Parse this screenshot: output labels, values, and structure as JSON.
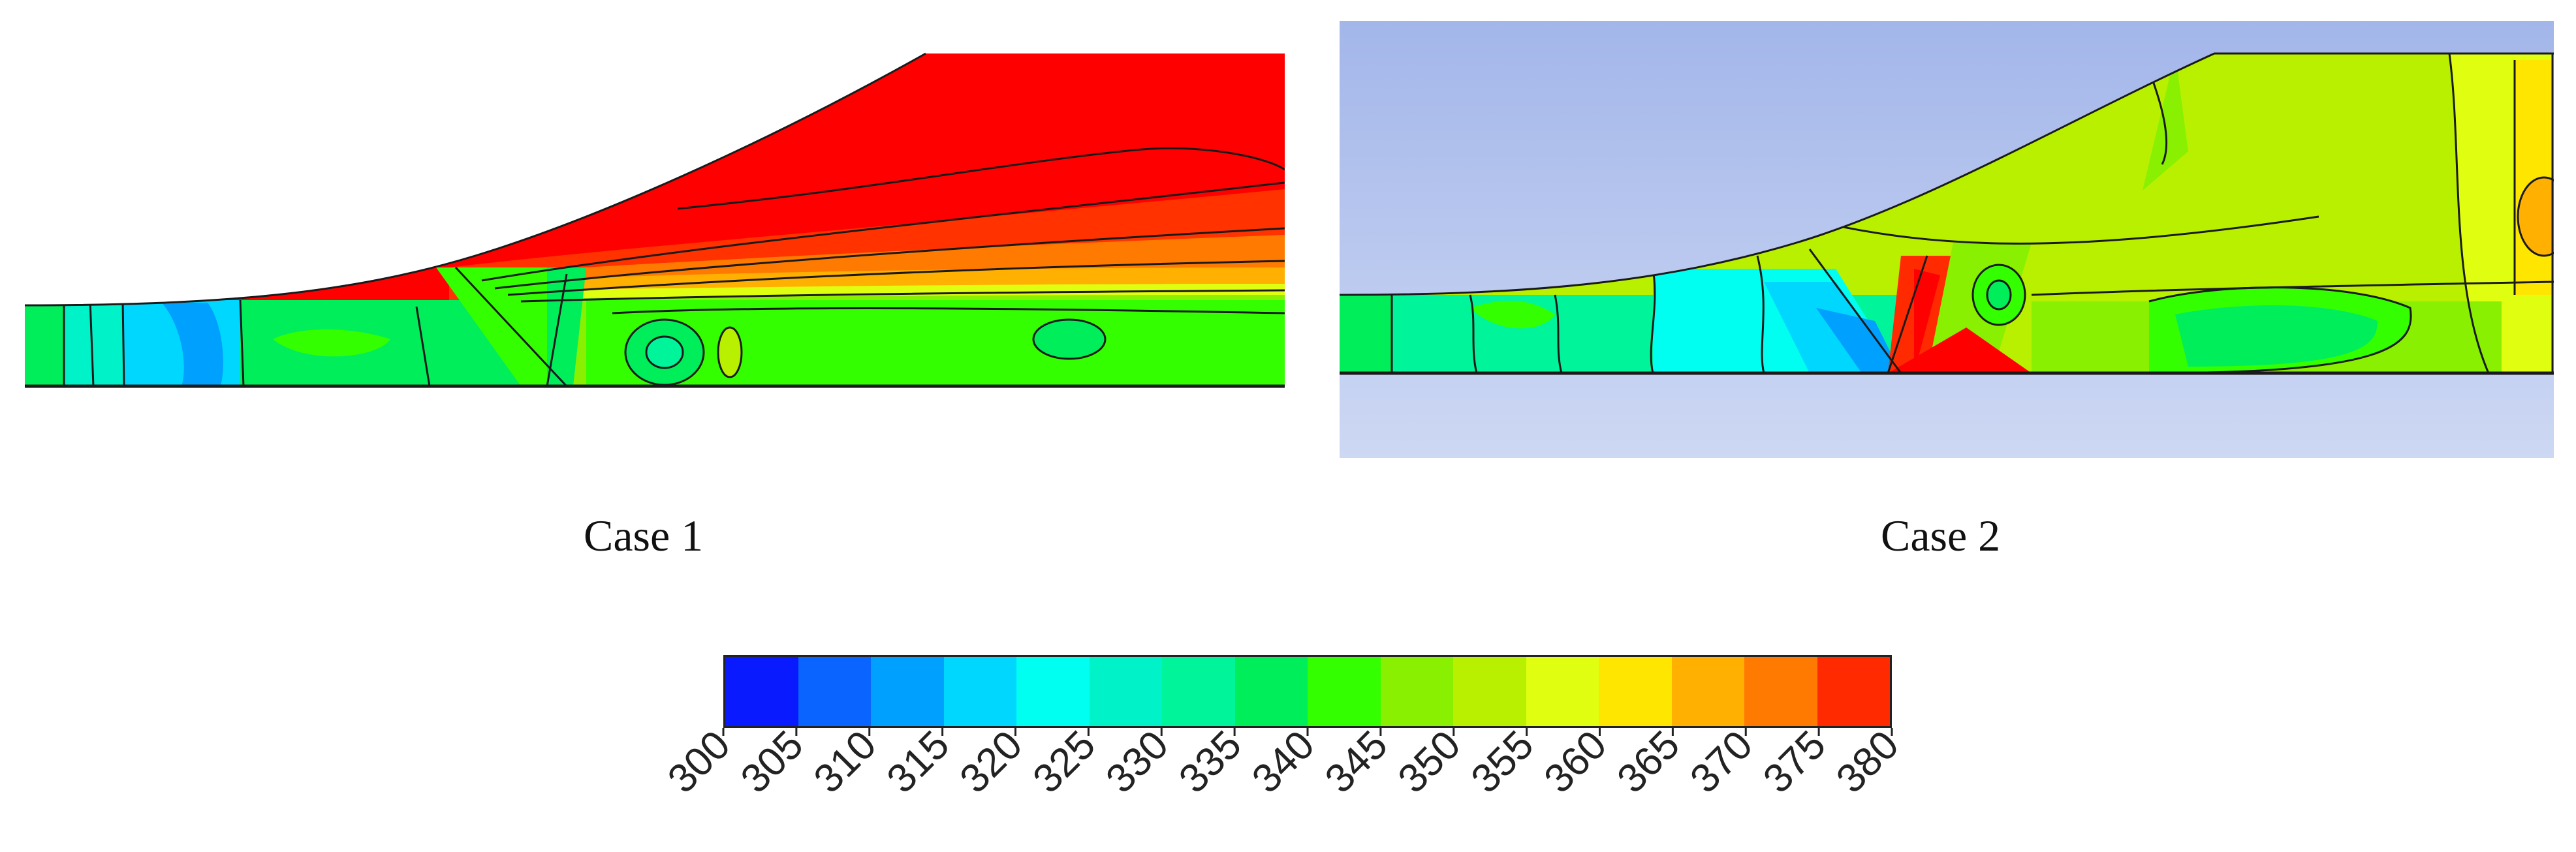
{
  "captions": {
    "case1": "Case 1",
    "case2": "Case 2"
  },
  "colorbar": {
    "ticks": [
      "300",
      "305",
      "310",
      "315",
      "320",
      "325",
      "330",
      "335",
      "340",
      "345",
      "350",
      "355",
      "360",
      "365",
      "370",
      "375",
      "380"
    ],
    "bins": [
      {
        "range": "300-305",
        "color": "#0a1aff"
      },
      {
        "range": "305-310",
        "color": "#0a64ff"
      },
      {
        "range": "310-315",
        "color": "#00a0ff"
      },
      {
        "range": "315-320",
        "color": "#00d7ff"
      },
      {
        "range": "320-325",
        "color": "#00fff0"
      },
      {
        "range": "325-330",
        "color": "#00f2c8"
      },
      {
        "range": "330-335",
        "color": "#00f59a"
      },
      {
        "range": "335-340",
        "color": "#00ee5a"
      },
      {
        "range": "340-345",
        "color": "#33ff00"
      },
      {
        "range": "345-350",
        "color": "#88f000"
      },
      {
        "range": "350-355",
        "color": "#b8f000"
      },
      {
        "range": "355-360",
        "color": "#e0ff10"
      },
      {
        "range": "360-365",
        "color": "#ffe600"
      },
      {
        "range": "365-370",
        "color": "#ffb000"
      },
      {
        "range": "370-375",
        "color": "#ff7a00"
      },
      {
        "range": "375-380",
        "color": "#ff2a00"
      }
    ]
  },
  "colors": {
    "case2_background": "#aabbe8",
    "contour_line": "#1a1a1a",
    "hot": "#ff0000"
  }
}
